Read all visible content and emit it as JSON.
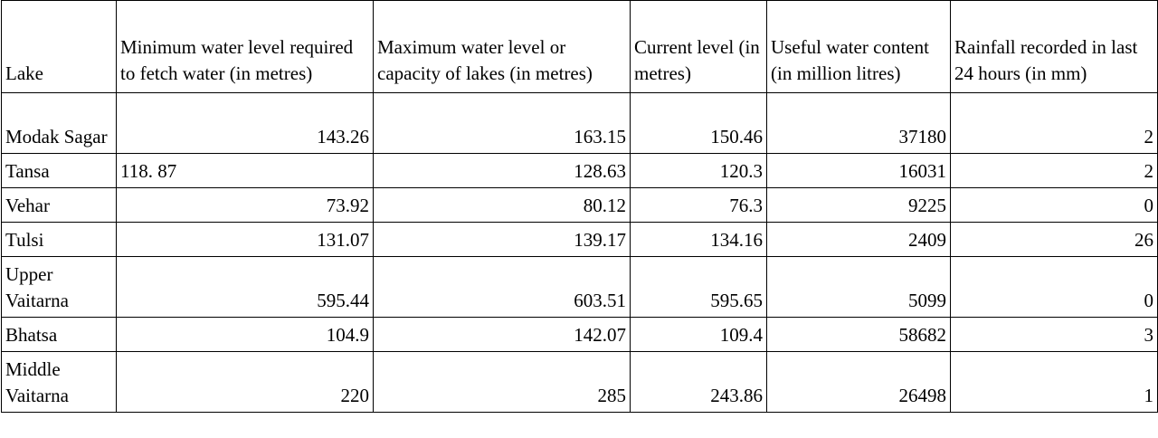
{
  "table": {
    "headers": [
      "Lake",
      "Minimum water level required to fetch water (in metres)",
      "Maximum water level or capacity of lakes (in metres)",
      "Current level (in metres)",
      "Useful water content (in million litres)",
      "Rainfall recorded in last 24 hours (in mm)"
    ],
    "rows": [
      [
        "Modak Sagar",
        "143.26",
        "163.15",
        "150.46",
        "37180",
        "2"
      ],
      [
        "Tansa",
        "118. 87",
        "128.63",
        "120.3",
        "16031",
        "2"
      ],
      [
        "Vehar",
        "73.92",
        "80.12",
        "76.3",
        "9225",
        "0"
      ],
      [
        "Tulsi",
        "131.07",
        "139.17",
        "134.16",
        "2409",
        "26"
      ],
      [
        "Upper Vaitarna",
        "595.44",
        "603.51",
        "595.65",
        "5099",
        "0"
      ],
      [
        "Bhatsa",
        "104.9",
        "142.07",
        "109.4",
        "58682",
        "3"
      ],
      [
        "Middle Vaitarna",
        "220",
        "285",
        "243.86",
        "26498",
        "1"
      ]
    ]
  }
}
